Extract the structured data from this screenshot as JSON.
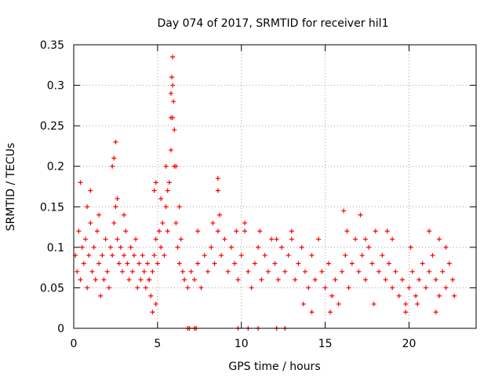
{
  "chart_data": {
    "type": "scatter",
    "title": "Day 074 of 2017, SRMTID for receiver hil1",
    "xlabel": "GPS time / hours",
    "ylabel": "SRMTID / TECUs",
    "xlim": [
      0,
      24
    ],
    "ylim": [
      0,
      0.35
    ],
    "x_ticks": [
      0,
      5,
      10,
      15,
      20
    ],
    "x_tick_labels": [
      "0",
      "5",
      "10",
      "15",
      "20"
    ],
    "y_ticks": [
      0,
      0.05,
      0.1,
      0.15,
      0.2,
      0.25,
      0.3,
      0.35
    ],
    "y_tick_labels": [
      "0",
      "0.05",
      "0.1",
      "0.15",
      "0.2",
      "0.25",
      "0.3",
      "0.35"
    ],
    "grid": true,
    "marker": "+",
    "color": "#ff0000",
    "series": [
      {
        "name": "hil1",
        "points": [
          [
            0.1,
            0.09
          ],
          [
            0.2,
            0.07
          ],
          [
            0.3,
            0.12
          ],
          [
            0.4,
            0.06
          ],
          [
            0.5,
            0.1
          ],
          [
            0.6,
            0.08
          ],
          [
            0.7,
            0.11
          ],
          [
            0.8,
            0.05
          ],
          [
            0.9,
            0.09
          ],
          [
            1.0,
            0.13
          ],
          [
            1.1,
            0.07
          ],
          [
            1.2,
            0.1
          ],
          [
            1.3,
            0.06
          ],
          [
            1.4,
            0.12
          ],
          [
            1.5,
            0.08
          ],
          [
            1.6,
            0.04
          ],
          [
            1.7,
            0.09
          ],
          [
            1.8,
            0.06
          ],
          [
            1.9,
            0.11
          ],
          [
            2.0,
            0.07
          ],
          [
            2.1,
            0.05
          ],
          [
            2.2,
            0.1
          ],
          [
            2.3,
            0.09
          ],
          [
            2.4,
            0.13
          ],
          [
            2.5,
            0.15
          ],
          [
            2.6,
            0.11
          ],
          [
            2.7,
            0.08
          ],
          [
            2.8,
            0.1
          ],
          [
            2.9,
            0.07
          ],
          [
            3.0,
            0.09
          ],
          [
            3.1,
            0.12
          ],
          [
            3.2,
            0.08
          ],
          [
            3.3,
            0.06
          ],
          [
            3.4,
            0.1
          ],
          [
            3.5,
            0.07
          ],
          [
            3.6,
            0.09
          ],
          [
            3.7,
            0.11
          ],
          [
            3.8,
            0.05
          ],
          [
            3.9,
            0.08
          ],
          [
            4.0,
            0.06
          ],
          [
            4.1,
            0.09
          ],
          [
            4.2,
            0.07
          ],
          [
            4.3,
            0.05
          ],
          [
            4.4,
            0.08
          ],
          [
            4.5,
            0.06
          ],
          [
            4.6,
            0.04
          ],
          [
            4.7,
            0.07
          ],
          [
            4.8,
            0.09
          ],
          [
            4.9,
            0.11
          ],
          [
            5.0,
            0.08
          ],
          [
            5.1,
            0.12
          ],
          [
            5.2,
            0.1
          ],
          [
            5.3,
            0.13
          ],
          [
            5.4,
            0.09
          ],
          [
            5.5,
            0.15
          ],
          [
            5.6,
            0.12
          ],
          [
            5.7,
            0.18
          ],
          [
            5.8,
            0.22
          ],
          [
            5.9,
            0.26
          ],
          [
            6.0,
            0.2
          ],
          [
            6.1,
            0.13
          ],
          [
            6.2,
            0.1
          ],
          [
            6.3,
            0.08
          ],
          [
            6.4,
            0.11
          ],
          [
            6.5,
            0.07
          ],
          [
            0.4,
            0.18
          ],
          [
            0.8,
            0.15
          ],
          [
            1.0,
            0.17
          ],
          [
            1.5,
            0.14
          ],
          [
            2.3,
            0.2
          ],
          [
            2.4,
            0.21
          ],
          [
            2.5,
            0.23
          ],
          [
            2.6,
            0.16
          ],
          [
            3.0,
            0.14
          ],
          [
            4.8,
            0.17
          ],
          [
            4.9,
            0.18
          ],
          [
            5.2,
            0.16
          ],
          [
            5.5,
            0.2
          ],
          [
            5.6,
            0.17
          ],
          [
            5.8,
            0.26
          ],
          [
            5.8,
            0.29
          ],
          [
            5.85,
            0.31
          ],
          [
            5.9,
            0.3
          ],
          [
            5.9,
            0.335
          ],
          [
            5.95,
            0.28
          ],
          [
            6.0,
            0.245
          ],
          [
            6.1,
            0.2
          ],
          [
            6.3,
            0.15
          ],
          [
            4.5,
            0.06
          ],
          [
            4.7,
            0.02
          ],
          [
            4.9,
            0.03
          ],
          [
            6.6,
            0.06
          ],
          [
            6.8,
            0.05
          ],
          [
            7.0,
            0.07
          ],
          [
            7.2,
            0.06
          ],
          [
            7.4,
            0.08
          ],
          [
            7.6,
            0.05
          ],
          [
            7.8,
            0.09
          ],
          [
            8.0,
            0.07
          ],
          [
            8.2,
            0.1
          ],
          [
            8.4,
            0.08
          ],
          [
            8.6,
            0.12
          ],
          [
            8.8,
            0.09
          ],
          [
            9.0,
            0.11
          ],
          [
            9.2,
            0.07
          ],
          [
            9.4,
            0.1
          ],
          [
            9.6,
            0.08
          ],
          [
            9.8,
            0.06
          ],
          [
            10.0,
            0.09
          ],
          [
            10.2,
            0.12
          ],
          [
            10.4,
            0.07
          ],
          [
            10.6,
            0.05
          ],
          [
            10.8,
            0.08
          ],
          [
            11.0,
            0.1
          ],
          [
            11.2,
            0.06
          ],
          [
            11.4,
            0.09
          ],
          [
            11.6,
            0.07
          ],
          [
            11.8,
            0.11
          ],
          [
            12.0,
            0.08
          ],
          [
            12.2,
            0.06
          ],
          [
            12.4,
            0.1
          ],
          [
            12.6,
            0.07
          ],
          [
            12.8,
            0.09
          ],
          [
            13.0,
            0.12
          ],
          [
            13.2,
            0.06
          ],
          [
            13.4,
            0.08
          ],
          [
            13.6,
            0.1
          ],
          [
            13.8,
            0.07
          ],
          [
            14.0,
            0.05
          ],
          [
            14.2,
            0.09
          ],
          [
            14.4,
            0.06
          ],
          [
            14.6,
            0.11
          ],
          [
            14.8,
            0.07
          ],
          [
            15.0,
            0.05
          ],
          [
            15.2,
            0.08
          ],
          [
            15.4,
            0.04
          ],
          [
            15.6,
            0.06
          ],
          [
            15.8,
            0.03
          ],
          [
            16.0,
            0.07
          ],
          [
            16.2,
            0.09
          ],
          [
            16.4,
            0.05
          ],
          [
            16.6,
            0.08
          ],
          [
            16.8,
            0.11
          ],
          [
            17.0,
            0.07
          ],
          [
            17.2,
            0.09
          ],
          [
            17.4,
            0.06
          ],
          [
            17.6,
            0.1
          ],
          [
            17.8,
            0.08
          ],
          [
            18.0,
            0.12
          ],
          [
            18.2,
            0.07
          ],
          [
            18.4,
            0.09
          ],
          [
            18.6,
            0.06
          ],
          [
            18.8,
            0.08
          ],
          [
            19.0,
            0.05
          ],
          [
            19.2,
            0.07
          ],
          [
            19.4,
            0.04
          ],
          [
            19.6,
            0.06
          ],
          [
            19.8,
            0.03
          ],
          [
            20.0,
            0.05
          ],
          [
            20.2,
            0.07
          ],
          [
            20.4,
            0.04
          ],
          [
            20.6,
            0.06
          ],
          [
            20.8,
            0.08
          ],
          [
            21.0,
            0.05
          ],
          [
            21.2,
            0.07
          ],
          [
            21.4,
            0.09
          ],
          [
            21.6,
            0.06
          ],
          [
            21.8,
            0.04
          ],
          [
            22.0,
            0.07
          ],
          [
            22.2,
            0.05
          ],
          [
            22.4,
            0.08
          ],
          [
            22.6,
            0.06
          ],
          [
            22.7,
            0.04
          ],
          [
            7.4,
            0.12
          ],
          [
            8.3,
            0.13
          ],
          [
            8.6,
            0.185
          ],
          [
            8.6,
            0.17
          ],
          [
            8.7,
            0.14
          ],
          [
            9.7,
            0.12
          ],
          [
            10.2,
            0.13
          ],
          [
            11.1,
            0.12
          ],
          [
            12.1,
            0.11
          ],
          [
            13.0,
            0.11
          ],
          [
            16.1,
            0.145
          ],
          [
            16.3,
            0.12
          ],
          [
            17.1,
            0.14
          ],
          [
            17.4,
            0.11
          ],
          [
            18.7,
            0.12
          ],
          [
            19.0,
            0.11
          ],
          [
            20.1,
            0.1
          ],
          [
            21.2,
            0.12
          ],
          [
            21.8,
            0.11
          ],
          [
            22.2,
            0.1
          ],
          [
            14.2,
            0.02
          ],
          [
            15.3,
            0.02
          ],
          [
            19.8,
            0.02
          ],
          [
            21.6,
            0.02
          ],
          [
            13.7,
            0.03
          ],
          [
            17.9,
            0.03
          ],
          [
            20.5,
            0.03
          ],
          [
            6.8,
            0.0
          ],
          [
            6.9,
            0.0
          ],
          [
            7.2,
            0.0
          ],
          [
            7.3,
            0.0
          ],
          [
            9.8,
            0.0
          ],
          [
            10.4,
            0.0
          ],
          [
            11.0,
            0.0
          ],
          [
            12.1,
            0.0
          ],
          [
            12.6,
            0.0
          ]
        ]
      }
    ]
  }
}
